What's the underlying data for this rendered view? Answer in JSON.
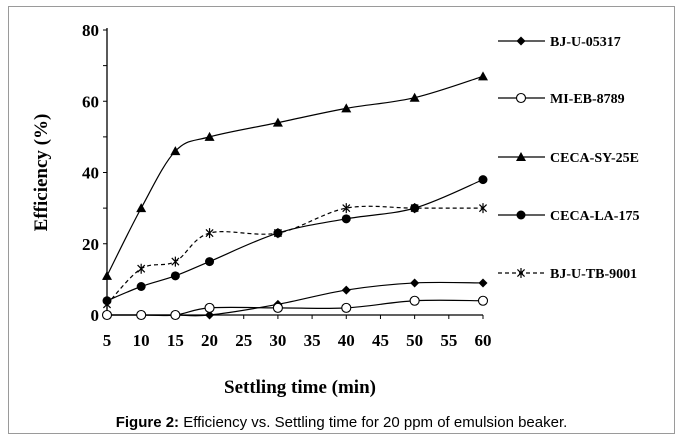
{
  "caption": {
    "label": "Figure 2:",
    "text": "Efficiency vs. Settling time for 20 ppm of emulsion beaker."
  },
  "chart_data": {
    "type": "line",
    "xlabel": "Settling time  (min)",
    "ylabel": "Efficiency  (%)",
    "x_ticks": [
      5,
      10,
      15,
      20,
      25,
      30,
      35,
      40,
      45,
      50,
      55,
      60
    ],
    "y_ticks": [
      0,
      20,
      40,
      60,
      80
    ],
    "ylim": [
      0,
      80
    ],
    "grid": false,
    "legend_position": "right",
    "series": [
      {
        "name": "BJ-U-05317",
        "marker": "diamond",
        "line": "solid",
        "x": [
          5,
          10,
          15,
          20,
          30,
          40,
          50,
          60
        ],
        "y": [
          0,
          0,
          0,
          0,
          3,
          7,
          9,
          9
        ]
      },
      {
        "name": "MI-EB-8789",
        "marker": "open-circle",
        "line": "solid",
        "x": [
          5,
          10,
          15,
          20,
          30,
          40,
          50,
          60
        ],
        "y": [
          0,
          0,
          0,
          2,
          2,
          2,
          4,
          4
        ]
      },
      {
        "name": "CECA-SY-25E",
        "marker": "triangle",
        "line": "solid",
        "x": [
          5,
          10,
          15,
          20,
          30,
          40,
          50,
          60
        ],
        "y": [
          11,
          30,
          46,
          50,
          54,
          58,
          61,
          67
        ]
      },
      {
        "name": "CECA-LA-175",
        "marker": "filled-circle",
        "line": "solid",
        "x": [
          5,
          10,
          15,
          20,
          30,
          40,
          50,
          60
        ],
        "y": [
          4,
          8,
          11,
          15,
          23,
          27,
          30,
          38
        ]
      },
      {
        "name": "BJ-U-TB-9001",
        "marker": "asterisk",
        "line": "dashed",
        "x": [
          5,
          10,
          15,
          20,
          30,
          40,
          50,
          60
        ],
        "y": [
          3,
          13,
          15,
          23,
          23,
          30,
          30,
          30
        ]
      }
    ]
  }
}
